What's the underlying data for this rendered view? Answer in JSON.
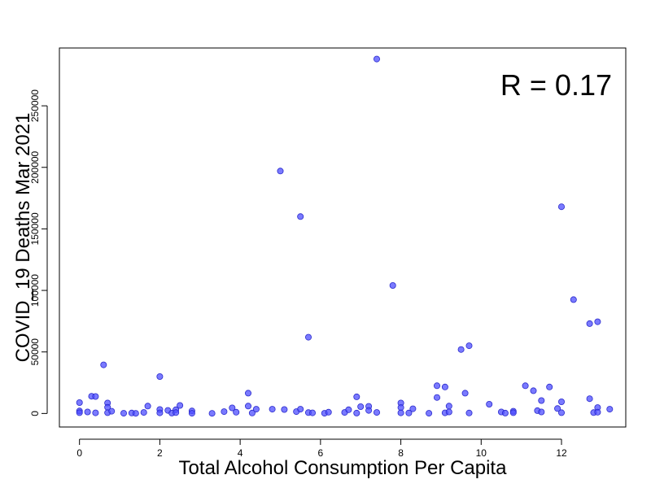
{
  "chart_data": {
    "type": "scatter",
    "title": "",
    "xlabel": "Total Alcohol Consumption Per Capita",
    "ylabel": "COVID_19 Deaths Mar 2021",
    "annotation": "R =  0.17",
    "xlim": [
      -0.5,
      13.6
    ],
    "ylim": [
      -11000,
      297000
    ],
    "xticks": [
      0,
      2,
      4,
      6,
      8,
      10,
      12
    ],
    "yticks": [
      0,
      50000,
      100000,
      150000,
      200000,
      250000
    ],
    "grid": false,
    "legend": "none",
    "point_color": "#4d4dff",
    "point_edge": "#2a2acc",
    "points": [
      {
        "x": 0.0,
        "y": 8800
      },
      {
        "x": 0.0,
        "y": 2000
      },
      {
        "x": 0.0,
        "y": 600
      },
      {
        "x": 0.2,
        "y": 1200
      },
      {
        "x": 0.3,
        "y": 14000
      },
      {
        "x": 0.4,
        "y": 13800
      },
      {
        "x": 0.4,
        "y": 500
      },
      {
        "x": 0.6,
        "y": 39500
      },
      {
        "x": 0.7,
        "y": 8500
      },
      {
        "x": 0.7,
        "y": 5000
      },
      {
        "x": 0.7,
        "y": 600
      },
      {
        "x": 0.8,
        "y": 1800
      },
      {
        "x": 1.1,
        "y": 200
      },
      {
        "x": 1.3,
        "y": 400
      },
      {
        "x": 1.4,
        "y": 100
      },
      {
        "x": 1.6,
        "y": 800
      },
      {
        "x": 1.7,
        "y": 6000
      },
      {
        "x": 2.0,
        "y": 30000
      },
      {
        "x": 2.0,
        "y": 3200
      },
      {
        "x": 2.0,
        "y": 500
      },
      {
        "x": 2.2,
        "y": 2500
      },
      {
        "x": 2.3,
        "y": 300
      },
      {
        "x": 2.4,
        "y": 3000
      },
      {
        "x": 2.4,
        "y": 700
      },
      {
        "x": 2.5,
        "y": 6500
      },
      {
        "x": 2.8,
        "y": 2000
      },
      {
        "x": 2.8,
        "y": 200
      },
      {
        "x": 3.3,
        "y": 100
      },
      {
        "x": 3.6,
        "y": 1500
      },
      {
        "x": 3.8,
        "y": 4500
      },
      {
        "x": 3.9,
        "y": 1000
      },
      {
        "x": 4.2,
        "y": 16500
      },
      {
        "x": 4.2,
        "y": 6000
      },
      {
        "x": 4.3,
        "y": 400
      },
      {
        "x": 4.4,
        "y": 3500
      },
      {
        "x": 4.8,
        "y": 3500
      },
      {
        "x": 5.0,
        "y": 197000
      },
      {
        "x": 5.1,
        "y": 3200
      },
      {
        "x": 5.4,
        "y": 1500
      },
      {
        "x": 5.5,
        "y": 160000
      },
      {
        "x": 5.5,
        "y": 3500
      },
      {
        "x": 5.7,
        "y": 62000
      },
      {
        "x": 5.7,
        "y": 700
      },
      {
        "x": 5.8,
        "y": 500
      },
      {
        "x": 6.1,
        "y": 200
      },
      {
        "x": 6.2,
        "y": 1000
      },
      {
        "x": 6.6,
        "y": 800
      },
      {
        "x": 6.7,
        "y": 3000
      },
      {
        "x": 6.9,
        "y": 13500
      },
      {
        "x": 6.9,
        "y": 300
      },
      {
        "x": 7.0,
        "y": 5500
      },
      {
        "x": 7.2,
        "y": 5800
      },
      {
        "x": 7.2,
        "y": 2500
      },
      {
        "x": 7.4,
        "y": 288000
      },
      {
        "x": 7.4,
        "y": 800
      },
      {
        "x": 7.8,
        "y": 104000
      },
      {
        "x": 8.0,
        "y": 8500
      },
      {
        "x": 8.0,
        "y": 4800
      },
      {
        "x": 8.0,
        "y": 500
      },
      {
        "x": 8.2,
        "y": 400
      },
      {
        "x": 8.3,
        "y": 3800
      },
      {
        "x": 8.7,
        "y": 200
      },
      {
        "x": 8.9,
        "y": 22500
      },
      {
        "x": 8.9,
        "y": 13000
      },
      {
        "x": 9.1,
        "y": 21500
      },
      {
        "x": 9.1,
        "y": 500
      },
      {
        "x": 9.2,
        "y": 6000
      },
      {
        "x": 9.2,
        "y": 1200
      },
      {
        "x": 9.5,
        "y": 52000
      },
      {
        "x": 9.6,
        "y": 16500
      },
      {
        "x": 9.7,
        "y": 55000
      },
      {
        "x": 9.7,
        "y": 400
      },
      {
        "x": 10.2,
        "y": 7500
      },
      {
        "x": 10.5,
        "y": 1200
      },
      {
        "x": 10.6,
        "y": 300
      },
      {
        "x": 10.8,
        "y": 1800
      },
      {
        "x": 10.8,
        "y": 600
      },
      {
        "x": 11.1,
        "y": 22500
      },
      {
        "x": 11.3,
        "y": 18500
      },
      {
        "x": 11.4,
        "y": 2300
      },
      {
        "x": 11.5,
        "y": 10500
      },
      {
        "x": 11.5,
        "y": 1200
      },
      {
        "x": 11.7,
        "y": 21500
      },
      {
        "x": 11.9,
        "y": 4000
      },
      {
        "x": 12.0,
        "y": 168000
      },
      {
        "x": 12.0,
        "y": 9500
      },
      {
        "x": 12.0,
        "y": 600
      },
      {
        "x": 12.3,
        "y": 92500
      },
      {
        "x": 12.7,
        "y": 73000
      },
      {
        "x": 12.7,
        "y": 12000
      },
      {
        "x": 12.8,
        "y": 700
      },
      {
        "x": 12.9,
        "y": 74500
      },
      {
        "x": 12.9,
        "y": 4800
      },
      {
        "x": 12.9,
        "y": 1000
      },
      {
        "x": 13.2,
        "y": 3500
      }
    ]
  }
}
